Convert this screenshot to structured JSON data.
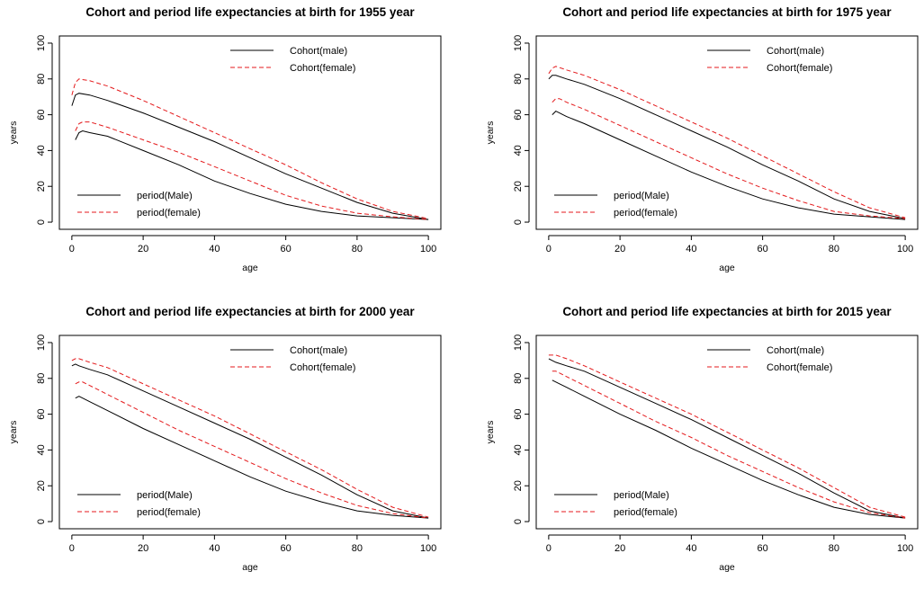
{
  "chart_data": [
    {
      "type": "line",
      "title": "Cohort and period life expectancies at birth for 1955 year",
      "xlabel": "age",
      "ylabel": "years",
      "xlim": [
        0,
        100
      ],
      "ylim": [
        0,
        100
      ],
      "xticks": [
        0,
        20,
        40,
        60,
        80,
        100
      ],
      "yticks": [
        0,
        20,
        40,
        60,
        80,
        100
      ],
      "grid": false,
      "legends": [
        {
          "placement": "top-right",
          "series": [
            "Cohort(male)",
            "Cohort(female)"
          ]
        },
        {
          "placement": "bottom-left",
          "series": [
            "period(Male)",
            "period(female)"
          ]
        }
      ],
      "series": [
        {
          "name": "Cohort(male)",
          "color": "#000000",
          "dash": "solid",
          "x": [
            0,
            1,
            2,
            5,
            10,
            20,
            30,
            40,
            50,
            60,
            70,
            80,
            90,
            100
          ],
          "y": [
            65,
            71,
            72,
            71,
            68,
            61,
            53,
            45,
            36,
            27,
            19,
            11,
            5,
            1.5
          ]
        },
        {
          "name": "Cohort(female)",
          "color": "#e41a1c",
          "dash": "dashed",
          "x": [
            0,
            1,
            2,
            5,
            10,
            20,
            30,
            40,
            50,
            60,
            70,
            80,
            90,
            100
          ],
          "y": [
            71,
            78,
            80,
            79,
            76,
            68,
            59,
            50,
            41,
            32,
            22,
            13,
            6,
            2
          ]
        },
        {
          "name": "period(Male)",
          "color": "#000000",
          "dash": "solid",
          "x": [
            1,
            2,
            3,
            5,
            10,
            20,
            30,
            40,
            50,
            60,
            70,
            80,
            90,
            100
          ],
          "y": [
            46,
            50,
            51,
            50,
            48,
            40,
            32,
            23,
            16,
            10,
            6,
            3.5,
            2.5,
            1.5
          ]
        },
        {
          "name": "period(female)",
          "color": "#e41a1c",
          "dash": "dashed",
          "x": [
            1,
            2,
            3,
            5,
            10,
            20,
            30,
            40,
            50,
            60,
            70,
            80,
            90,
            100
          ],
          "y": [
            51,
            55,
            56,
            56,
            53,
            46,
            39,
            31,
            23,
            15,
            9,
            5,
            3,
            1.5
          ]
        }
      ]
    },
    {
      "type": "line",
      "title": "Cohort and period life expectancies at birth for 1975 year",
      "xlabel": "age",
      "ylabel": "years",
      "xlim": [
        0,
        100
      ],
      "ylim": [
        0,
        100
      ],
      "xticks": [
        0,
        20,
        40,
        60,
        80,
        100
      ],
      "yticks": [
        0,
        20,
        40,
        60,
        80,
        100
      ],
      "grid": false,
      "legends": [
        {
          "placement": "top-right",
          "series": [
            "Cohort(male)",
            "Cohort(female)"
          ]
        },
        {
          "placement": "bottom-left",
          "series": [
            "period(Male)",
            "period(female)"
          ]
        }
      ],
      "series": [
        {
          "name": "Cohort(male)",
          "color": "#000000",
          "dash": "solid",
          "x": [
            0,
            1,
            2,
            5,
            10,
            20,
            30,
            40,
            50,
            60,
            70,
            80,
            90,
            100
          ],
          "y": [
            80,
            82,
            82,
            80,
            77,
            69,
            60,
            51,
            42,
            32,
            23,
            13,
            6,
            2
          ]
        },
        {
          "name": "Cohort(female)",
          "color": "#e41a1c",
          "dash": "dashed",
          "x": [
            0,
            1,
            2,
            5,
            10,
            20,
            30,
            40,
            50,
            60,
            70,
            80,
            90,
            100
          ],
          "y": [
            83,
            86,
            87,
            85,
            82,
            74,
            65,
            56,
            47,
            37,
            27,
            17,
            8,
            2.5
          ]
        },
        {
          "name": "period(Male)",
          "color": "#000000",
          "dash": "solid",
          "x": [
            1,
            2,
            3,
            5,
            10,
            20,
            30,
            40,
            50,
            60,
            70,
            80,
            90,
            100
          ],
          "y": [
            60,
            62,
            61,
            59,
            55,
            46,
            37,
            28,
            20,
            13,
            8,
            4.5,
            3,
            1.5
          ]
        },
        {
          "name": "period(female)",
          "color": "#e41a1c",
          "dash": "dashed",
          "x": [
            1,
            2,
            3,
            5,
            10,
            20,
            30,
            40,
            50,
            60,
            70,
            80,
            90,
            100
          ],
          "y": [
            67,
            69,
            69,
            67,
            63,
            54,
            45,
            36,
            27,
            19,
            12,
            6,
            3.5,
            2
          ]
        }
      ]
    },
    {
      "type": "line",
      "title": "Cohort and period life expectancies at birth for 2000 year",
      "xlabel": "age",
      "ylabel": "years",
      "xlim": [
        0,
        100
      ],
      "ylim": [
        0,
        100
      ],
      "xticks": [
        0,
        20,
        40,
        60,
        80,
        100
      ],
      "yticks": [
        0,
        20,
        40,
        60,
        80,
        100
      ],
      "grid": false,
      "legends": [
        {
          "placement": "top-right",
          "series": [
            "Cohort(male)",
            "Cohort(female)"
          ]
        },
        {
          "placement": "bottom-left",
          "series": [
            "period(Male)",
            "period(female)"
          ]
        }
      ],
      "series": [
        {
          "name": "Cohort(male)",
          "color": "#000000",
          "dash": "solid",
          "x": [
            0,
            1,
            2,
            5,
            10,
            20,
            30,
            40,
            50,
            60,
            70,
            80,
            90,
            100
          ],
          "y": [
            87,
            88,
            87,
            85,
            82,
            73,
            64,
            55,
            46,
            36,
            26,
            15,
            6,
            2
          ]
        },
        {
          "name": "Cohort(female)",
          "color": "#e41a1c",
          "dash": "dashed",
          "x": [
            0,
            1,
            2,
            5,
            10,
            20,
            30,
            40,
            50,
            60,
            70,
            80,
            90,
            100
          ],
          "y": [
            90,
            91,
            91,
            89,
            86,
            77,
            68,
            59,
            49,
            39,
            29,
            18,
            8,
            2.5
          ]
        },
        {
          "name": "period(Male)",
          "color": "#000000",
          "dash": "solid",
          "x": [
            1,
            2,
            3,
            5,
            10,
            20,
            30,
            40,
            50,
            60,
            70,
            80,
            90,
            100
          ],
          "y": [
            69,
            70,
            69,
            67,
            62,
            52,
            43,
            34,
            25,
            17,
            11,
            6,
            3.5,
            2
          ]
        },
        {
          "name": "period(female)",
          "color": "#e41a1c",
          "dash": "dashed",
          "x": [
            1,
            2,
            3,
            5,
            10,
            20,
            30,
            40,
            50,
            60,
            70,
            80,
            90,
            100
          ],
          "y": [
            77,
            78,
            78,
            76,
            71,
            61,
            51,
            42,
            33,
            24,
            16,
            9,
            4.5,
            2
          ]
        }
      ]
    },
    {
      "type": "line",
      "title": "Cohort and period life expectancies at birth for 2015 year",
      "xlabel": "age",
      "ylabel": "years",
      "xlim": [
        0,
        100
      ],
      "ylim": [
        0,
        100
      ],
      "xticks": [
        0,
        20,
        40,
        60,
        80,
        100
      ],
      "yticks": [
        0,
        20,
        40,
        60,
        80,
        100
      ],
      "grid": false,
      "legends": [
        {
          "placement": "top-right",
          "series": [
            "Cohort(male)",
            "Cohort(female)"
          ]
        },
        {
          "placement": "bottom-left",
          "series": [
            "period(Male)",
            "period(female)"
          ]
        }
      ],
      "series": [
        {
          "name": "Cohort(male)",
          "color": "#000000",
          "dash": "solid",
          "x": [
            0,
            1,
            2,
            5,
            10,
            20,
            30,
            40,
            50,
            60,
            70,
            80,
            90,
            100
          ],
          "y": [
            91,
            90,
            89,
            87,
            84,
            75,
            66,
            57,
            47,
            37,
            27,
            16,
            6,
            2
          ]
        },
        {
          "name": "Cohort(female)",
          "color": "#e41a1c",
          "dash": "dashed",
          "x": [
            0,
            1,
            2,
            5,
            10,
            20,
            30,
            40,
            50,
            60,
            70,
            80,
            90,
            100
          ],
          "y": [
            93,
            93,
            93,
            91,
            87,
            78,
            69,
            60,
            50,
            40,
            30,
            19,
            8,
            2.5
          ]
        },
        {
          "name": "period(Male)",
          "color": "#000000",
          "dash": "solid",
          "x": [
            1,
            2,
            3,
            5,
            10,
            20,
            30,
            40,
            50,
            60,
            70,
            80,
            90,
            100
          ],
          "y": [
            79,
            78,
            77,
            75,
            70,
            60,
            51,
            41,
            32,
            23,
            15,
            8,
            4,
            2
          ]
        },
        {
          "name": "period(female)",
          "color": "#e41a1c",
          "dash": "dashed",
          "x": [
            1,
            2,
            3,
            5,
            10,
            20,
            30,
            40,
            50,
            60,
            70,
            80,
            90,
            100
          ],
          "y": [
            84,
            84,
            83,
            81,
            76,
            66,
            56,
            47,
            37,
            28,
            19,
            11,
            5,
            2
          ]
        }
      ]
    }
  ]
}
